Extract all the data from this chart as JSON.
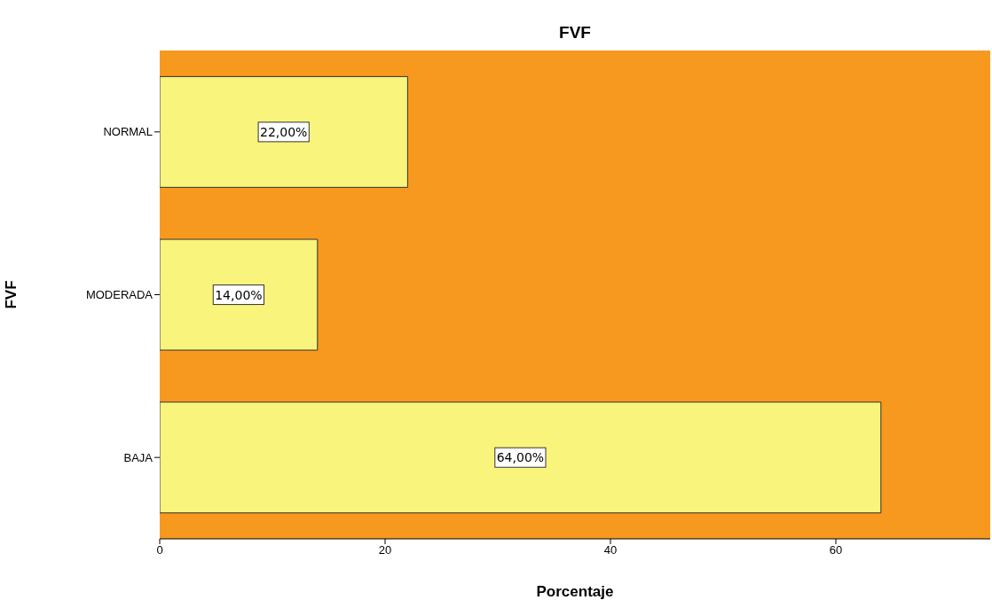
{
  "chart_data": {
    "type": "bar",
    "orientation": "horizontal",
    "title": "FVF",
    "xlabel": "Porcentaje",
    "ylabel": "FVF",
    "categories": [
      "NORMAL",
      "MODERADA",
      "BAJA"
    ],
    "values": [
      22,
      14,
      64
    ],
    "color": "#f8f47c",
    "value_labels": [
      "22,00%",
      "14,00%",
      "64,00%"
    ],
    "xlim": [
      0,
      73.7
    ],
    "xticks": [
      0,
      20,
      40,
      60
    ]
  }
}
